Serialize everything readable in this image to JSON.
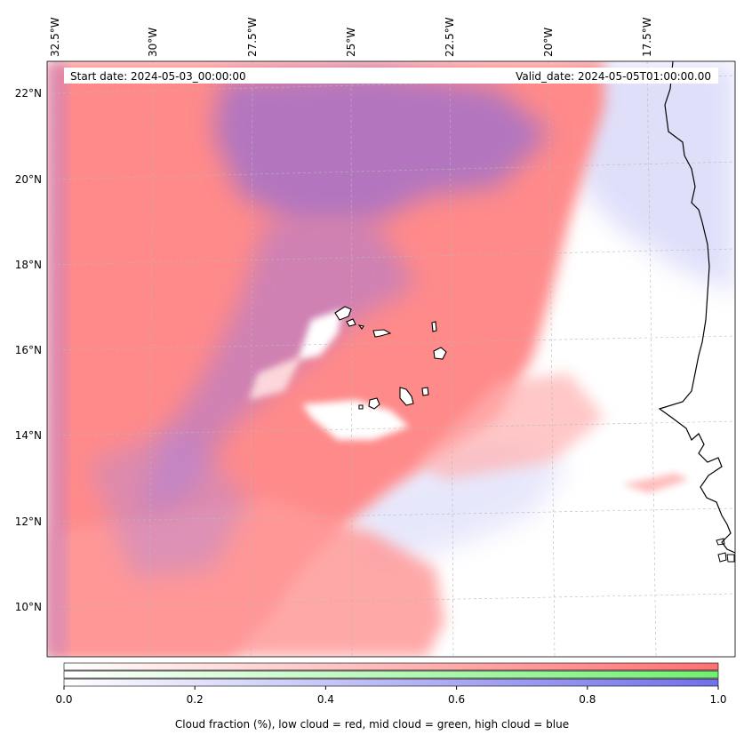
{
  "annotations": {
    "start_date": "Start date: 2024-05-03_00:00:00",
    "valid_date": "Valid_date: 2024-05-05T01:00:00.00"
  },
  "lon_ticks": [
    "32.5°W",
    "30°W",
    "27.5°W",
    "25°W",
    "22.5°W",
    "20°W",
    "17.5°W"
  ],
  "lat_ticks": [
    "22°N",
    "20°N",
    "18°N",
    "16°N",
    "14°N",
    "12°N",
    "10°N"
  ],
  "colorbar": {
    "ticks": [
      "0.0",
      "0.2",
      "0.4",
      "0.6",
      "0.8",
      "1.0"
    ],
    "caption": "Cloud fraction (%), low cloud = red, mid cloud = green, high cloud = blue",
    "range": [
      0,
      1
    ],
    "colors": {
      "low": "#ff7a7a",
      "mid": "#7ef07e",
      "high": "#7a7aea"
    }
  },
  "map": {
    "extent": {
      "lon_min": -33.0,
      "lon_max": -16.0,
      "lat_min": 8.8,
      "lat_max": 22.8
    },
    "colors": {
      "low_cloud": "#ff8a8a",
      "high_cloud": "#9a7ad8",
      "coast": "#000000",
      "grid": "#b0b0b0"
    }
  }
}
